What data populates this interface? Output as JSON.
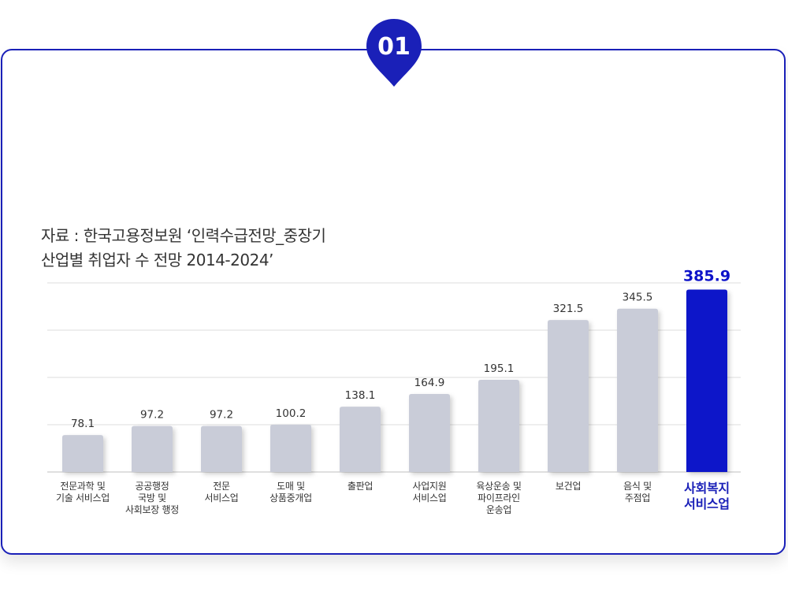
{
  "badge": {
    "number": "01",
    "color": "#1a20b8"
  },
  "source_lines": [
    "자료 : 한국고용정보원 ‘인력수급전망_중장기",
    "산업별 취업자 수 전망 2014-2024’"
  ],
  "colors": {
    "bar": "#c9ccd8",
    "highlight": "#0d12c9",
    "grid": "#dddddd",
    "label": "#333333"
  },
  "chart_data": {
    "type": "bar",
    "title": "",
    "xlabel": "",
    "ylabel": "",
    "ylim": [
      0,
      400
    ],
    "grid": true,
    "highlight_index": 9,
    "categories": [
      "전문과학 및\n기술 서비스업",
      "공공행정\n국방 및\n사회보장 행정",
      "전문\n서비스업",
      "도매 및\n상품중개업",
      "출판업",
      "사업지원\n서비스업",
      "육상운송 및\n파이프라인\n운송업",
      "보건업",
      "음식 및\n주점업",
      "사회복지\n서비스업"
    ],
    "values": [
      78.1,
      97.2,
      97.2,
      100.2,
      138.1,
      164.9,
      195.1,
      321.5,
      345.5,
      385.9
    ],
    "value_labels": [
      "78.1",
      "97.2",
      "97.2",
      "100.2",
      "138.1",
      "164.9",
      "195.1",
      "321.5",
      "345.5",
      "385.9"
    ]
  }
}
